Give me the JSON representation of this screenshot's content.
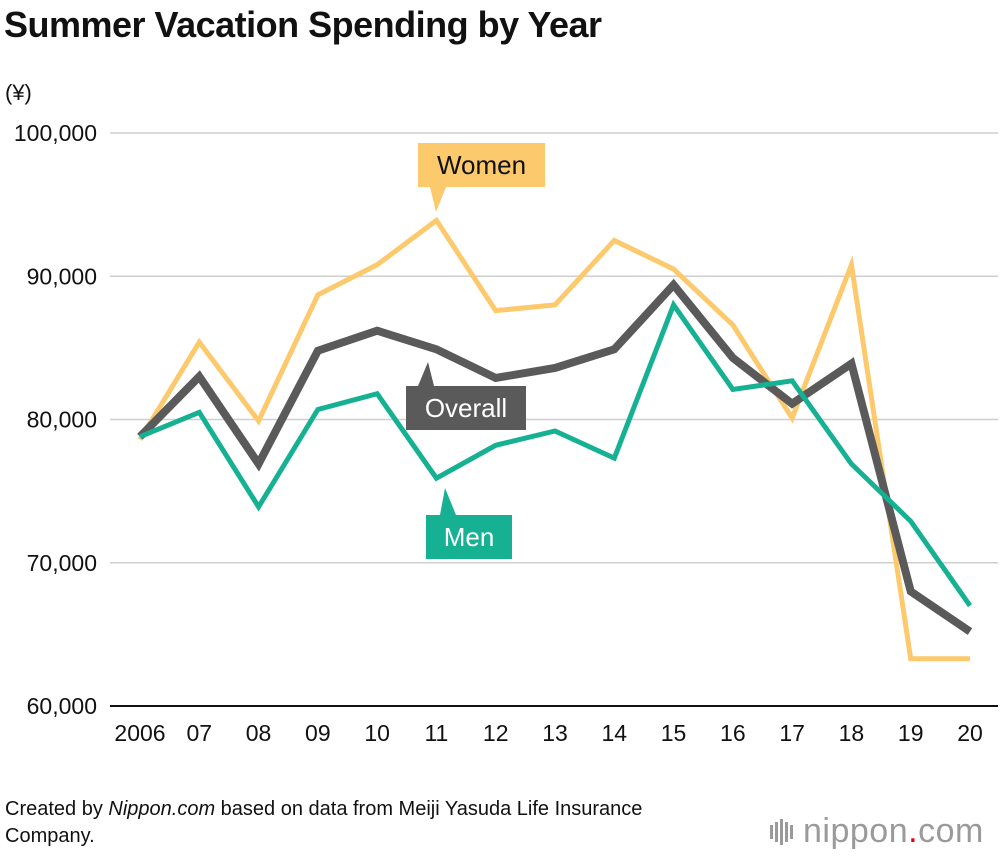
{
  "title": "Summer Vacation Spending by Year",
  "source": {
    "prefix": "Created by ",
    "brand": "Nippon.com",
    "suffix": " based on data from Meiji Yasuda Life Insurance Company."
  },
  "logo": {
    "name": "nippon",
    "dot": ".",
    "tld": "com"
  },
  "chart_data": {
    "type": "line",
    "title": "Summer Vacation Spending by Year",
    "ylabel": "(¥)",
    "xlabel": "",
    "categories": [
      "2006",
      "07",
      "08",
      "09",
      "10",
      "11",
      "12",
      "13",
      "14",
      "15",
      "16",
      "17",
      "18",
      "19",
      "20"
    ],
    "ylim": [
      60000,
      100000
    ],
    "yticks": [
      60000,
      70000,
      80000,
      90000,
      100000
    ],
    "ytick_labels": [
      "60,000",
      "70,000",
      "80,000",
      "90,000",
      "100,000"
    ],
    "grid": true,
    "legend": "inline labels",
    "series": [
      {
        "name": "Women",
        "color": "#fcc96d",
        "values": [
          78600,
          85400,
          79900,
          88700,
          90800,
          93900,
          87600,
          88000,
          92500,
          90500,
          86600,
          80100,
          90800,
          63300,
          63300
        ]
      },
      {
        "name": "Overall",
        "color": "#5a5a5a",
        "values": [
          78800,
          83000,
          76900,
          84800,
          86200,
          84900,
          82900,
          83600,
          84900,
          89400,
          84300,
          81100,
          83900,
          68000,
          65200
        ]
      },
      {
        "name": "Men",
        "color": "#16b192",
        "values": [
          78800,
          80500,
          73900,
          80700,
          81800,
          75900,
          78200,
          79200,
          77300,
          88000,
          82100,
          82700,
          76900,
          72900,
          67000
        ]
      }
    ]
  }
}
